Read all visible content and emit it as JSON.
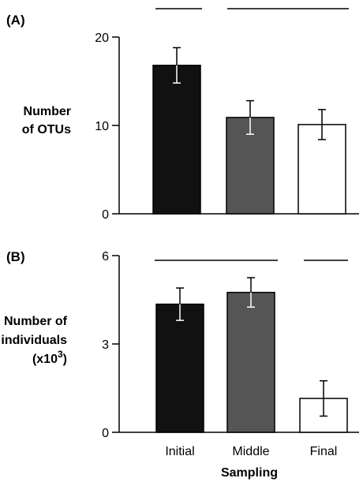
{
  "chart_data": [
    {
      "type": "bar",
      "panel_label": "(A)",
      "ylabel_lines": [
        "Number",
        "of OTUs"
      ],
      "categories": [
        "Initial",
        "Middle",
        "Final"
      ],
      "values": [
        16.8,
        10.9,
        10.1
      ],
      "error": [
        2.0,
        1.9,
        1.7
      ],
      "colors": [
        "#111111",
        "#555555",
        "#ffffff"
      ],
      "ylim": [
        0,
        20
      ],
      "yticks": [
        0,
        10,
        20
      ],
      "significance_groups": [
        [
          0
        ],
        [
          1,
          2
        ]
      ]
    },
    {
      "type": "bar",
      "panel_label": "(B)",
      "ylabel_lines": [
        "Number of",
        "individuals",
        "(x10"
      ],
      "ylabel_superscript": "3",
      "ylabel_close": ")",
      "categories": [
        "Initial",
        "Middle",
        "Final"
      ],
      "values": [
        4.35,
        4.75,
        1.15
      ],
      "error": [
        0.55,
        0.5,
        0.6
      ],
      "colors": [
        "#111111",
        "#555555",
        "#ffffff"
      ],
      "ylim": [
        0,
        6
      ],
      "yticks": [
        0,
        3,
        6
      ],
      "significance_groups": [
        [
          0,
          1
        ],
        [
          2
        ]
      ]
    }
  ],
  "xlabel": "Sampling"
}
